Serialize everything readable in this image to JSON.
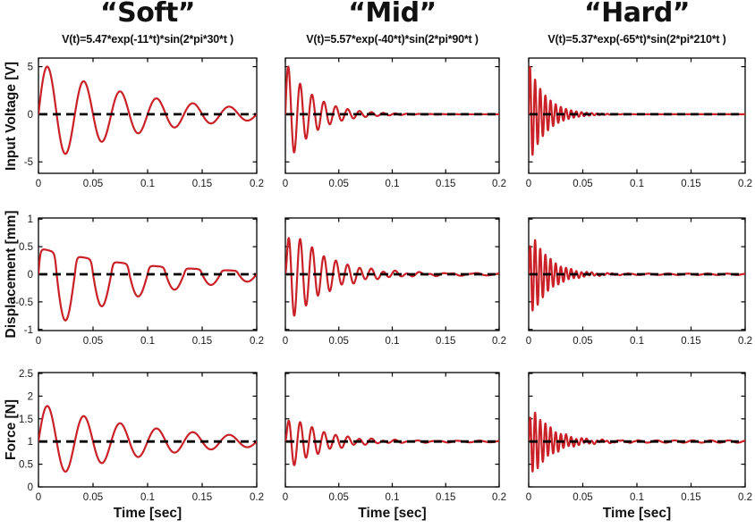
{
  "figure": {
    "background": "#ffffff",
    "colors": {
      "curve": "#c92127",
      "baseline_dash": "#000000",
      "axis": "#000000",
      "tick_label": "#1a1a1a",
      "title_text": "#111111"
    }
  },
  "columns": [
    {
      "id": "soft",
      "title": "“Soft”",
      "formula": "V(t)=5.47*exp(-11*t)*sin(2*pi*30*t )"
    },
    {
      "id": "mid",
      "title": "“Mid”",
      "formula": "V(t)=5.57*exp(-40*t)*sin(2*pi*90*t )"
    },
    {
      "id": "hard",
      "title": "“Hard”",
      "formula": "V(t)=5.37*exp(-65*t)*sin(2*pi*210*t )"
    }
  ],
  "rows": [
    {
      "id": "voltage",
      "ylabel": "Input Voltage [V]",
      "ylim": [
        -6.2,
        5.9
      ],
      "ytick_values": [
        -5,
        0,
        5
      ],
      "ytick_labels": [
        "-5",
        "0",
        "5"
      ],
      "baseline": 0
    },
    {
      "id": "displacement",
      "ylabel": "Displacement [mm]",
      "ylim": [
        -1.02,
        1.02
      ],
      "ytick_values": [
        -1,
        -0.5,
        0,
        0.5,
        1
      ],
      "ytick_labels": [
        "-1",
        "-0.5",
        "0",
        "0.5",
        "1"
      ],
      "baseline": 0
    },
    {
      "id": "force",
      "ylabel": "Force [N]",
      "ylim": [
        0,
        2.52
      ],
      "ytick_values": [
        0,
        0.5,
        1,
        1.5,
        2,
        2.5
      ],
      "ytick_labels": [
        "0",
        "0.5",
        "1",
        "1.5",
        "2",
        "2.5"
      ],
      "baseline": 1
    }
  ],
  "xaxis": {
    "label": "Time [sec]",
    "xlim": [
      0,
      0.2
    ],
    "tick_values": [
      0,
      0.05,
      0.1,
      0.15,
      0.2
    ],
    "tick_labels": [
      "0",
      "0.05",
      "0.1",
      "0.15",
      "0.2"
    ]
  },
  "chart_data": [
    {
      "type": "line",
      "row": "voltage",
      "column": "soft",
      "x_range": [
        0,
        0.2
      ],
      "signal": {
        "baseline": 0,
        "amp": 5.47,
        "decay": 11,
        "freq_hz": 30
      }
    },
    {
      "type": "line",
      "row": "voltage",
      "column": "mid",
      "x_range": [
        0,
        0.2
      ],
      "signal": {
        "baseline": 0,
        "amp": 5.57,
        "decay": 40,
        "freq_hz": 90
      }
    },
    {
      "type": "line",
      "row": "voltage",
      "column": "hard",
      "x_range": [
        0,
        0.2
      ],
      "signal": {
        "baseline": 0,
        "amp": 5.37,
        "decay": 65,
        "freq_hz": 210
      }
    },
    {
      "type": "line",
      "row": "displacement",
      "column": "soft",
      "x_range": [
        0,
        0.2
      ],
      "signal": {
        "baseline": 0,
        "amp": 1.0,
        "decay": 11,
        "freq_hz": 30,
        "pos_gain": 0.48,
        "pos_sat": 3,
        "neg_gain": 1.1
      }
    },
    {
      "type": "line",
      "row": "displacement",
      "column": "mid",
      "x_range": [
        0,
        0.2
      ],
      "signal": {
        "baseline": 0,
        "amp": 1.0,
        "decay": 30,
        "freq_hz": 90,
        "buildup": 400,
        "ripple_amp": 0.02,
        "ripple_freq": 40
      }
    },
    {
      "type": "line",
      "row": "displacement",
      "column": "hard",
      "x_range": [
        0,
        0.2
      ],
      "signal": {
        "baseline": 0,
        "amp": 0.9,
        "decay": 60,
        "freq_hz": 210,
        "buildup": 700,
        "ripple_amp": 0.012,
        "ripple_freq": 55
      }
    },
    {
      "type": "line",
      "row": "force",
      "column": "soft",
      "x_range": [
        0,
        0.2
      ],
      "signal": {
        "baseline": 1,
        "amp": 0.85,
        "decay": 10,
        "freq_hz": 30
      }
    },
    {
      "type": "line",
      "row": "force",
      "column": "mid",
      "x_range": [
        0,
        0.2
      ],
      "signal": {
        "baseline": 1,
        "amp": 0.7,
        "decay": 33,
        "freq_hz": 90,
        "buildup": 400,
        "ripple_amp": 0.018,
        "ripple_freq": 50
      }
    },
    {
      "type": "line",
      "row": "force",
      "column": "hard",
      "x_range": [
        0,
        0.2
      ],
      "signal": {
        "baseline": 1,
        "amp": 0.9,
        "decay": 55,
        "freq_hz": 210,
        "buildup": 700,
        "ripple_amp": 0.025,
        "ripple_freq": 60
      }
    }
  ]
}
